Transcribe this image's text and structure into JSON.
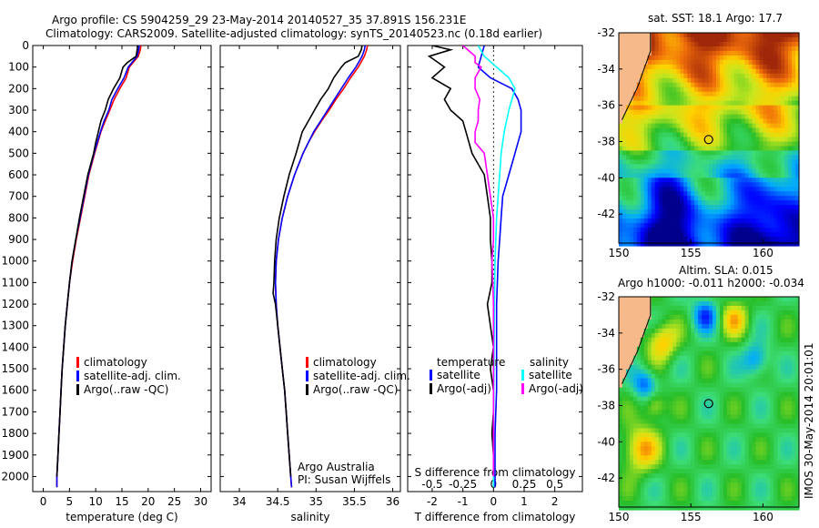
{
  "header": {
    "line1": "Argo profile: CS 5904259_29 23-May-2014 20140527_35 37.891S 156.231E",
    "line2": "Climatology: CARS2009. Satellite-adjusted climatology: synTS_20140523.nc (0.18d earlier)"
  },
  "colors": {
    "climatology": "#ff0000",
    "satellite": "#0000ff",
    "argo": "#000000",
    "sat_sal": "#00ffff",
    "argo_sal": "#ff00ff"
  },
  "chart_data": [
    {
      "type": "line",
      "name": "temperature-profile",
      "xlabel": "temperature (deg C)",
      "ylabel": "",
      "xlim": [
        -2,
        32
      ],
      "ylim": [
        2070,
        0
      ],
      "xticks": [
        0,
        5,
        10,
        15,
        20,
        25,
        30
      ],
      "yticks": [
        0,
        100,
        200,
        300,
        400,
        500,
        600,
        700,
        800,
        900,
        1000,
        1100,
        1200,
        1300,
        1400,
        1500,
        1600,
        1700,
        1800,
        1900,
        2000
      ],
      "legend": [
        "climatology",
        "satellite-adj. clim.",
        "Argo(..raw -QC)"
      ],
      "series": [
        {
          "name": "climatology",
          "color": "#ff0000",
          "depth": [
            0,
            20,
            50,
            100,
            150,
            200,
            250,
            300,
            350,
            400,
            450,
            500,
            600,
            700,
            800,
            900,
            1000,
            1100,
            1200,
            1300,
            1400,
            1500,
            1600,
            1700,
            1800,
            1900,
            2000,
            2050
          ],
          "values": [
            18.6,
            18.5,
            18.1,
            16.4,
            15.8,
            14.6,
            13.5,
            12.7,
            11.8,
            11.0,
            10.4,
            9.8,
            8.7,
            7.9,
            7.1,
            6.3,
            5.6,
            5.0,
            4.6,
            4.2,
            3.9,
            3.6,
            3.4,
            3.2,
            3.0,
            2.8,
            2.6,
            2.6
          ]
        },
        {
          "name": "satellite-adj. clim.",
          "color": "#0000ff",
          "depth": [
            0,
            20,
            50,
            100,
            150,
            200,
            250,
            300,
            350,
            400,
            450,
            500,
            600,
            700,
            800,
            900,
            1000,
            1100,
            1200,
            1300,
            1400,
            1500,
            1600,
            1700,
            1800,
            1900,
            2000,
            2050
          ],
          "values": [
            18.3,
            18.2,
            17.9,
            16.2,
            15.4,
            14.2,
            13.1,
            12.5,
            11.6,
            10.9,
            10.3,
            9.7,
            8.6,
            7.8,
            7.0,
            6.2,
            5.5,
            5.0,
            4.6,
            4.2,
            3.9,
            3.6,
            3.4,
            3.2,
            3.0,
            2.8,
            2.6,
            2.6
          ]
        },
        {
          "name": "Argo(..raw -QC)",
          "color": "#000000",
          "depth": [
            0,
            20,
            50,
            80,
            100,
            150,
            200,
            250,
            300,
            350,
            400,
            450,
            500,
            600,
            700,
            800,
            900,
            1000,
            1100,
            1200,
            1300,
            1400,
            1500,
            1600,
            1700,
            1800,
            1900,
            2000
          ],
          "values": [
            18.0,
            17.9,
            17.7,
            16.0,
            15.2,
            14.6,
            13.4,
            12.4,
            11.8,
            11.0,
            10.5,
            10.0,
            9.6,
            8.5,
            7.7,
            6.9,
            6.2,
            5.5,
            5.0,
            4.6,
            4.2,
            3.9,
            3.6,
            3.4,
            3.2,
            3.0,
            2.8,
            2.6
          ]
        }
      ]
    },
    {
      "type": "line",
      "name": "salinity-profile",
      "xlabel": "salinity",
      "ylabel": "",
      "xlim": [
        33.75,
        36.1
      ],
      "ylim": [
        2070,
        0
      ],
      "xticks": [
        34,
        34.5,
        35,
        35.5,
        36
      ],
      "legend": [
        "climatology",
        "satellite-adj. clim.",
        "Argo(..raw -QC)"
      ],
      "annotation": [
        "Argo Australia",
        "PI: Susan Wijffels"
      ],
      "series": [
        {
          "name": "climatology",
          "color": "#ff0000",
          "depth": [
            0,
            20,
            50,
            100,
            150,
            200,
            250,
            300,
            350,
            400,
            450,
            500,
            600,
            700,
            800,
            900,
            1000,
            1100,
            1200,
            1300,
            1400,
            1500,
            1600,
            1700,
            1800,
            1900,
            2000,
            2050
          ],
          "values": [
            35.67,
            35.66,
            35.63,
            35.55,
            35.45,
            35.36,
            35.26,
            35.17,
            35.07,
            34.98,
            34.9,
            34.83,
            34.72,
            34.63,
            34.56,
            34.51,
            34.48,
            34.47,
            34.48,
            34.5,
            34.53,
            34.56,
            34.59,
            34.61,
            34.63,
            34.65,
            34.67,
            34.68
          ]
        },
        {
          "name": "satellite-adj. clim.",
          "color": "#0000ff",
          "depth": [
            0,
            20,
            50,
            100,
            150,
            200,
            250,
            300,
            350,
            400,
            450,
            500,
            600,
            700,
            800,
            900,
            1000,
            1100,
            1200,
            1300,
            1400,
            1500,
            1600,
            1700,
            1800,
            1900,
            2000,
            2050
          ],
          "values": [
            35.64,
            35.63,
            35.6,
            35.52,
            35.42,
            35.33,
            35.24,
            35.15,
            35.06,
            34.97,
            34.9,
            34.83,
            34.72,
            34.63,
            34.56,
            34.51,
            34.48,
            34.47,
            34.48,
            34.5,
            34.53,
            34.56,
            34.59,
            34.61,
            34.63,
            34.65,
            34.67,
            34.68
          ]
        },
        {
          "name": "Argo(..raw -QC)",
          "color": "#000000",
          "depth": [
            0,
            20,
            50,
            80,
            100,
            150,
            200,
            250,
            300,
            350,
            400,
            450,
            500,
            600,
            700,
            800,
            900,
            1000,
            1100,
            1150,
            1200,
            1300,
            1400,
            1500,
            1600,
            1700,
            1800,
            1900,
            2000
          ],
          "values": [
            35.6,
            35.59,
            35.55,
            35.38,
            35.33,
            35.23,
            35.16,
            35.06,
            34.98,
            34.9,
            34.82,
            34.78,
            34.74,
            34.65,
            34.58,
            34.52,
            34.48,
            34.46,
            34.45,
            34.44,
            34.47,
            34.5,
            34.53,
            34.56,
            34.59,
            34.61,
            34.63,
            34.65,
            34.67
          ]
        }
      ]
    },
    {
      "type": "line",
      "name": "difference-profile",
      "xlabel": "T difference from climatology",
      "xlabel_top": "S difference from climatology",
      "xlim": [
        -2.8,
        2.9
      ],
      "ylim": [
        2070,
        0
      ],
      "xticks": [
        -2,
        -1,
        0,
        1,
        2
      ],
      "xtick_labels": [
        "-2",
        "-1",
        "0",
        "1",
        "2"
      ],
      "sticks": [
        -2,
        -1,
        0,
        1,
        2
      ],
      "stick_labels": [
        "-0.5",
        "-0.25",
        "0",
        "0.25",
        "0.5"
      ],
      "legend_temperature": [
        "temperature",
        "satellite",
        "Argo(-adj)"
      ],
      "legend_salinity": [
        "salinity",
        "satellite",
        "Argo(-adj)"
      ],
      "series": [
        {
          "name": "T satellite",
          "color": "#0000ff",
          "depth": [
            0,
            50,
            100,
            150,
            200,
            250,
            300,
            400,
            500,
            600,
            700,
            800,
            900,
            1000,
            1200,
            1400,
            1600,
            1800,
            2000,
            2050
          ],
          "values": [
            -0.3,
            -0.4,
            -0.5,
            -0.1,
            0.6,
            0.8,
            0.9,
            0.9,
            0.7,
            0.5,
            0.3,
            0.25,
            0.2,
            0.15,
            0.1,
            0.1,
            0.1,
            0.05,
            0.05,
            0.05
          ]
        },
        {
          "name": "T Argo(-adj)",
          "color": "#000000",
          "depth": [
            0,
            20,
            50,
            80,
            100,
            150,
            200,
            250,
            300,
            350,
            400,
            500,
            600,
            700,
            800,
            900,
            1000,
            1100,
            1200,
            1300,
            1400,
            1500,
            1600,
            1700,
            1800,
            1900,
            2000
          ],
          "values": [
            -2.0,
            -1.4,
            -2.1,
            -1.8,
            -1.6,
            -2.0,
            -1.4,
            -1.6,
            -1.4,
            -1.0,
            -0.9,
            -0.7,
            -0.3,
            -0.2,
            -0.1,
            -0.1,
            -0.05,
            -0.05,
            -0.2,
            -0.1,
            0.0,
            -0.1,
            0.0,
            0.0,
            -0.05,
            0.0,
            0.0
          ]
        },
        {
          "name": "S satellite",
          "color": "#00ffff",
          "depth": [
            0,
            50,
            100,
            150,
            200,
            300,
            400,
            500,
            600,
            700,
            800,
            1000,
            1200,
            1400,
            1600,
            1800,
            2000,
            2050
          ],
          "values": [
            -0.5,
            -0.3,
            0.1,
            0.5,
            0.7,
            0.5,
            0.35,
            0.25,
            0.2,
            0.15,
            0.1,
            0.05,
            0.03,
            0.02,
            0.01,
            0.0,
            0.0,
            0.0
          ]
        },
        {
          "name": "S Argo(-adj)",
          "color": "#ff00ff",
          "depth": [
            0,
            50,
            80,
            100,
            150,
            200,
            250,
            300,
            350,
            400,
            450,
            500,
            600,
            700,
            800,
            900,
            1000,
            1100,
            1200,
            1300,
            1400,
            1500,
            1600,
            1700,
            1800,
            1900,
            2000
          ],
          "values": [
            -1.0,
            -0.6,
            -0.6,
            -0.4,
            -0.6,
            -0.6,
            -0.45,
            -0.5,
            -0.5,
            -0.6,
            -0.6,
            -0.3,
            -0.2,
            -0.1,
            0.0,
            0.0,
            -0.05,
            -0.02,
            0.0,
            0.0,
            0.0,
            0.0,
            0.0,
            0.0,
            0.0,
            0.0,
            0.0
          ]
        }
      ]
    },
    {
      "type": "heatmap",
      "name": "sst-map",
      "title": "sat. SST: 18.1  Argo: 17.7",
      "xlim": [
        150,
        162.5
      ],
      "ylim": [
        -43.6,
        -32
      ],
      "xticks": [
        150,
        155,
        160
      ],
      "yticks": [
        -32,
        -34,
        -36,
        -38,
        -40,
        -42
      ],
      "marker": {
        "lon": 156.231,
        "lat": -37.891
      }
    },
    {
      "type": "heatmap",
      "name": "sla-map",
      "title": "Altim. SLA: 0.015",
      "subtitle": "Argo h1000: -0.011 h2000: -0.034",
      "xlim": [
        150,
        162.5
      ],
      "ylim": [
        -43.6,
        -32
      ],
      "xticks": [
        150,
        155,
        160
      ],
      "yticks": [
        -32,
        -34,
        -36,
        -38,
        -40,
        -42
      ],
      "marker": {
        "lon": 156.231,
        "lat": -37.891
      }
    }
  ],
  "footer_stamp": "IMOS 30-May-2014 20:01:01"
}
